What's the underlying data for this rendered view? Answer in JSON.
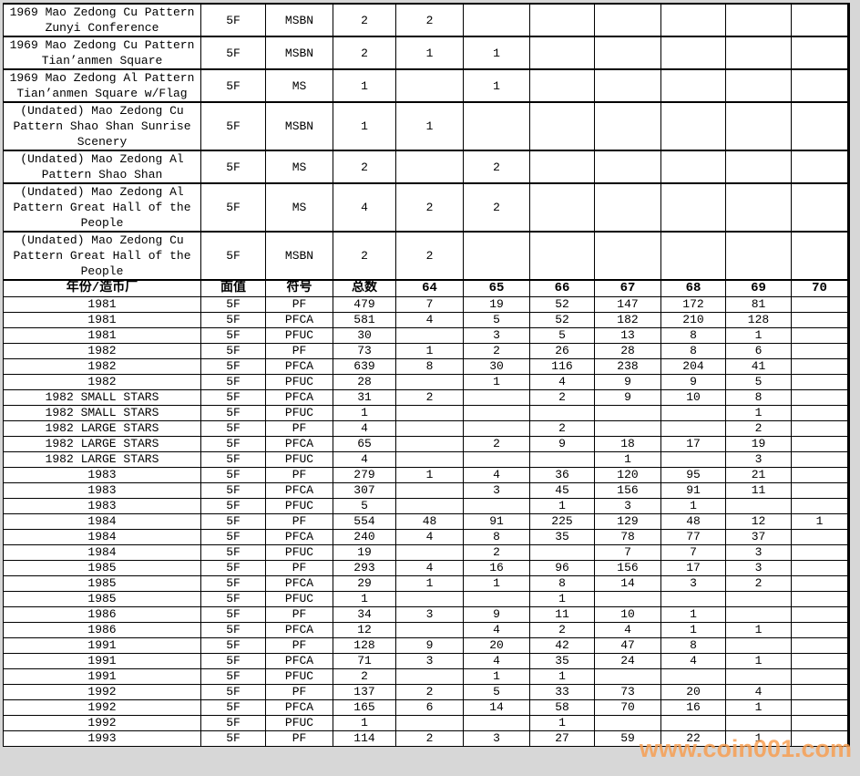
{
  "watermark": {
    "text": "www.coin001.com",
    "color": "#f89d4e"
  },
  "table": {
    "columns": [
      "年份/造币厂",
      "面值",
      "符号",
      "总数",
      "64",
      "65",
      "66",
      "67",
      "68",
      "69",
      "70"
    ],
    "pattern_rows": [
      {
        "name": [
          "1969 Mao Zedong Cu Pattern",
          "Zunyi Conference"
        ],
        "denom": "5F",
        "symbol": "MSBN",
        "total": "2",
        "grades": [
          "2",
          "",
          "",
          "",
          "",
          "",
          ""
        ]
      },
      {
        "name": [
          "1969 Mao Zedong Cu Pattern",
          "Tian’anmen Square"
        ],
        "denom": "5F",
        "symbol": "MSBN",
        "total": "2",
        "grades": [
          "1",
          "1",
          "",
          "",
          "",
          "",
          ""
        ]
      },
      {
        "name": [
          "1969 Mao Zedong Al Pattern",
          "Tian’anmen Square w/Flag"
        ],
        "denom": "5F",
        "symbol": "MS",
        "total": "1",
        "grades": [
          "",
          "1",
          "",
          "",
          "",
          "",
          ""
        ]
      },
      {
        "name": [
          "(Undated) Mao Zedong Cu",
          "Pattern Shao Shan Sunrise",
          "Scenery"
        ],
        "denom": "5F",
        "symbol": "MSBN",
        "total": "1",
        "grades": [
          "1",
          "",
          "",
          "",
          "",
          "",
          ""
        ]
      },
      {
        "name": [
          "(Undated) Mao Zedong Al",
          "Pattern Shao Shan"
        ],
        "denom": "5F",
        "symbol": "MS",
        "total": "2",
        "grades": [
          "",
          "2",
          "",
          "",
          "",
          "",
          ""
        ]
      },
      {
        "name": [
          "(Undated) Mao Zedong Al",
          "Pattern Great Hall of the",
          "People"
        ],
        "denom": "5F",
        "symbol": "MS",
        "total": "4",
        "grades": [
          "2",
          "2",
          "",
          "",
          "",
          "",
          ""
        ]
      },
      {
        "name": [
          "(Undated) Mao Zedong Cu",
          "Pattern Great Hall of the",
          "People"
        ],
        "denom": "5F",
        "symbol": "MSBN",
        "total": "2",
        "grades": [
          "2",
          "",
          "",
          "",
          "",
          "",
          ""
        ]
      }
    ],
    "year_rows": [
      {
        "name": "1981",
        "denom": "5F",
        "symbol": "PF",
        "total": "479",
        "grades": [
          "7",
          "19",
          "52",
          "147",
          "172",
          "81",
          ""
        ]
      },
      {
        "name": "1981",
        "denom": "5F",
        "symbol": "PFCA",
        "total": "581",
        "grades": [
          "4",
          "5",
          "52",
          "182",
          "210",
          "128",
          ""
        ]
      },
      {
        "name": "1981",
        "denom": "5F",
        "symbol": "PFUC",
        "total": "30",
        "grades": [
          "",
          "3",
          "5",
          "13",
          "8",
          "1",
          ""
        ]
      },
      {
        "name": "1982",
        "denom": "5F",
        "symbol": "PF",
        "total": "73",
        "grades": [
          "1",
          "2",
          "26",
          "28",
          "8",
          "6",
          ""
        ]
      },
      {
        "name": "1982",
        "denom": "5F",
        "symbol": "PFCA",
        "total": "639",
        "grades": [
          "8",
          "30",
          "116",
          "238",
          "204",
          "41",
          ""
        ]
      },
      {
        "name": "1982",
        "denom": "5F",
        "symbol": "PFUC",
        "total": "28",
        "grades": [
          "",
          "1",
          "4",
          "9",
          "9",
          "5",
          ""
        ]
      },
      {
        "name": "1982 SMALL STARS",
        "denom": "5F",
        "symbol": "PFCA",
        "total": "31",
        "grades": [
          "2",
          "",
          "2",
          "9",
          "10",
          "8",
          ""
        ]
      },
      {
        "name": "1982 SMALL STARS",
        "denom": "5F",
        "symbol": "PFUC",
        "total": "1",
        "grades": [
          "",
          "",
          "",
          "",
          "",
          "1",
          ""
        ]
      },
      {
        "name": "1982 LARGE STARS",
        "denom": "5F",
        "symbol": "PF",
        "total": "4",
        "grades": [
          "",
          "",
          "2",
          "",
          "",
          "2",
          ""
        ]
      },
      {
        "name": "1982 LARGE STARS",
        "denom": "5F",
        "symbol": "PFCA",
        "total": "65",
        "grades": [
          "",
          "2",
          "9",
          "18",
          "17",
          "19",
          ""
        ]
      },
      {
        "name": "1982 LARGE STARS",
        "denom": "5F",
        "symbol": "PFUC",
        "total": "4",
        "grades": [
          "",
          "",
          "",
          "1",
          "",
          "3",
          ""
        ]
      },
      {
        "name": "1983",
        "denom": "5F",
        "symbol": "PF",
        "total": "279",
        "grades": [
          "1",
          "4",
          "36",
          "120",
          "95",
          "21",
          ""
        ]
      },
      {
        "name": "1983",
        "denom": "5F",
        "symbol": "PFCA",
        "total": "307",
        "grades": [
          "",
          "3",
          "45",
          "156",
          "91",
          "11",
          ""
        ]
      },
      {
        "name": "1983",
        "denom": "5F",
        "symbol": "PFUC",
        "total": "5",
        "grades": [
          "",
          "",
          "1",
          "3",
          "1",
          "",
          ""
        ]
      },
      {
        "name": "1984",
        "denom": "5F",
        "symbol": "PF",
        "total": "554",
        "grades": [
          "48",
          "91",
          "225",
          "129",
          "48",
          "12",
          "1"
        ]
      },
      {
        "name": "1984",
        "denom": "5F",
        "symbol": "PFCA",
        "total": "240",
        "grades": [
          "4",
          "8",
          "35",
          "78",
          "77",
          "37",
          ""
        ]
      },
      {
        "name": "1984",
        "denom": "5F",
        "symbol": "PFUC",
        "total": "19",
        "grades": [
          "",
          "2",
          "",
          "7",
          "7",
          "3",
          ""
        ]
      },
      {
        "name": "1985",
        "denom": "5F",
        "symbol": "PF",
        "total": "293",
        "grades": [
          "4",
          "16",
          "96",
          "156",
          "17",
          "3",
          ""
        ]
      },
      {
        "name": "1985",
        "denom": "5F",
        "symbol": "PFCA",
        "total": "29",
        "grades": [
          "1",
          "1",
          "8",
          "14",
          "3",
          "2",
          ""
        ]
      },
      {
        "name": "1985",
        "denom": "5F",
        "symbol": "PFUC",
        "total": "1",
        "grades": [
          "",
          "",
          "1",
          "",
          "",
          "",
          ""
        ]
      },
      {
        "name": "1986",
        "denom": "5F",
        "symbol": "PF",
        "total": "34",
        "grades": [
          "3",
          "9",
          "11",
          "10",
          "1",
          "",
          ""
        ]
      },
      {
        "name": "1986",
        "denom": "5F",
        "symbol": "PFCA",
        "total": "12",
        "grades": [
          "",
          "4",
          "2",
          "4",
          "1",
          "1",
          ""
        ]
      },
      {
        "name": "1991",
        "denom": "5F",
        "symbol": "PF",
        "total": "128",
        "grades": [
          "9",
          "20",
          "42",
          "47",
          "8",
          "",
          ""
        ]
      },
      {
        "name": "1991",
        "denom": "5F",
        "symbol": "PFCA",
        "total": "71",
        "grades": [
          "3",
          "4",
          "35",
          "24",
          "4",
          "1",
          ""
        ]
      },
      {
        "name": "1991",
        "denom": "5F",
        "symbol": "PFUC",
        "total": "2",
        "grades": [
          "",
          "1",
          "1",
          "",
          "",
          "",
          ""
        ]
      },
      {
        "name": "1992",
        "denom": "5F",
        "symbol": "PF",
        "total": "137",
        "grades": [
          "2",
          "5",
          "33",
          "73",
          "20",
          "4",
          ""
        ]
      },
      {
        "name": "1992",
        "denom": "5F",
        "symbol": "PFCA",
        "total": "165",
        "grades": [
          "6",
          "14",
          "58",
          "70",
          "16",
          "1",
          ""
        ]
      },
      {
        "name": "1992",
        "denom": "5F",
        "symbol": "PFUC",
        "total": "1",
        "grades": [
          "",
          "",
          "1",
          "",
          "",
          "",
          ""
        ]
      },
      {
        "name": "1993",
        "denom": "5F",
        "symbol": "PF",
        "total": "114",
        "grades": [
          "2",
          "3",
          "27",
          "59",
          "22",
          "1",
          ""
        ]
      }
    ]
  }
}
